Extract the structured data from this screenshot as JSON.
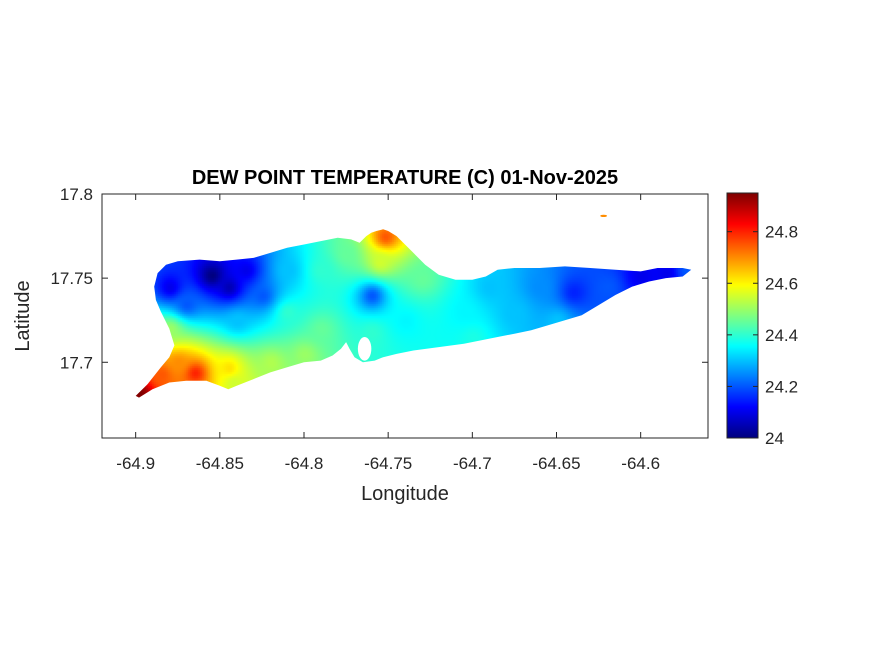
{
  "chart_data": {
    "type": "heatmap",
    "title": "DEW POINT TEMPERATURE (C) 01-Nov-2025",
    "xlabel": "Longitude",
    "ylabel": "Latitude",
    "xlim": [
      -64.92,
      -64.56
    ],
    "ylim": [
      17.655,
      17.8
    ],
    "x_ticks": [
      -64.9,
      -64.85,
      -64.8,
      -64.75,
      -64.7,
      -64.65,
      -64.6
    ],
    "x_tick_labels": [
      "-64.9",
      "-64.85",
      "-64.8",
      "-64.75",
      "-64.7",
      "-64.65",
      "-64.6"
    ],
    "y_ticks": [
      17.7,
      17.75,
      17.8
    ],
    "y_tick_labels": [
      "17.7",
      "17.75",
      "17.8"
    ],
    "colorbar": {
      "colormap": "jet",
      "range": [
        24.0,
        24.95
      ],
      "ticks": [
        24,
        24.2,
        24.4,
        24.6,
        24.8
      ],
      "tick_labels": [
        "24",
        "24.2",
        "24.4",
        "24.6",
        "24.8"
      ]
    },
    "grid": false,
    "land_outline": [
      [
        -64.9,
        17.68
      ],
      [
        -64.893,
        17.687
      ],
      [
        -64.885,
        17.697
      ],
      [
        -64.88,
        17.703
      ],
      [
        -64.877,
        17.71
      ],
      [
        -64.88,
        17.72
      ],
      [
        -64.885,
        17.73
      ],
      [
        -64.888,
        17.737
      ],
      [
        -64.889,
        17.745
      ],
      [
        -64.887,
        17.753
      ],
      [
        -64.882,
        17.758
      ],
      [
        -64.875,
        17.76
      ],
      [
        -64.862,
        17.761
      ],
      [
        -64.85,
        17.76
      ],
      [
        -64.84,
        17.761
      ],
      [
        -64.83,
        17.762
      ],
      [
        -64.82,
        17.765
      ],
      [
        -64.81,
        17.768
      ],
      [
        -64.8,
        17.77
      ],
      [
        -64.79,
        17.772
      ],
      [
        -64.78,
        17.774
      ],
      [
        -64.772,
        17.773
      ],
      [
        -64.767,
        17.771
      ],
      [
        -64.763,
        17.775
      ],
      [
        -64.76,
        17.777
      ],
      [
        -64.757,
        17.778
      ],
      [
        -64.753,
        17.779
      ],
      [
        -64.75,
        17.778
      ],
      [
        -64.745,
        17.775
      ],
      [
        -64.74,
        17.77
      ],
      [
        -64.735,
        17.765
      ],
      [
        -64.728,
        17.758
      ],
      [
        -64.72,
        17.752
      ],
      [
        -64.71,
        17.749
      ],
      [
        -64.7,
        17.749
      ],
      [
        -64.692,
        17.751
      ],
      [
        -64.685,
        17.755
      ],
      [
        -64.675,
        17.756
      ],
      [
        -64.66,
        17.756
      ],
      [
        -64.645,
        17.757
      ],
      [
        -64.63,
        17.756
      ],
      [
        -64.615,
        17.755
      ],
      [
        -64.6,
        17.754
      ],
      [
        -64.59,
        17.756
      ],
      [
        -64.575,
        17.756
      ],
      [
        -64.57,
        17.755
      ],
      [
        -64.575,
        17.751
      ],
      [
        -64.585,
        17.75
      ],
      [
        -64.595,
        17.748
      ],
      [
        -64.605,
        17.745
      ],
      [
        -64.615,
        17.74
      ],
      [
        -64.625,
        17.734
      ],
      [
        -64.635,
        17.728
      ],
      [
        -64.645,
        17.725
      ],
      [
        -64.655,
        17.722
      ],
      [
        -64.665,
        17.719
      ],
      [
        -64.675,
        17.717
      ],
      [
        -64.685,
        17.715
      ],
      [
        -64.695,
        17.713
      ],
      [
        -64.705,
        17.711
      ],
      [
        -64.72,
        17.709
      ],
      [
        -64.735,
        17.707
      ],
      [
        -64.745,
        17.705
      ],
      [
        -64.753,
        17.703
      ],
      [
        -64.758,
        17.701
      ],
      [
        -64.765,
        17.7
      ],
      [
        -64.77,
        17.703
      ],
      [
        -64.773,
        17.708
      ],
      [
        -64.775,
        17.712
      ],
      [
        -64.778,
        17.708
      ],
      [
        -64.783,
        17.704
      ],
      [
        -64.79,
        17.701
      ],
      [
        -64.8,
        17.7
      ],
      [
        -64.81,
        17.697
      ],
      [
        -64.82,
        17.694
      ],
      [
        -64.83,
        17.69
      ],
      [
        -64.84,
        17.686
      ],
      [
        -64.845,
        17.684
      ],
      [
        -64.85,
        17.686
      ],
      [
        -64.858,
        17.689
      ],
      [
        -64.87,
        17.689
      ],
      [
        -64.88,
        17.688
      ],
      [
        -64.89,
        17.684
      ],
      [
        -64.898,
        17.679
      ]
    ],
    "bays": [
      {
        "center": [
          -64.764,
          17.708
        ],
        "radius": [
          0.004,
          0.007
        ]
      },
      {
        "center": [
          -64.776,
          17.778
        ],
        "radius": [
          0.004,
          0.004
        ]
      }
    ],
    "islets": [
      {
        "center": [
          -64.622,
          17.787
        ],
        "radius": [
          0.002,
          0.0007
        ]
      }
    ],
    "stations": [
      {
        "lon": -64.898,
        "lat": 17.682,
        "value": 24.95
      },
      {
        "lon": -64.885,
        "lat": 17.693,
        "value": 24.75
      },
      {
        "lon": -64.865,
        "lat": 17.694,
        "value": 24.8
      },
      {
        "lon": -64.875,
        "lat": 17.7,
        "value": 24.7
      },
      {
        "lon": -64.845,
        "lat": 17.697,
        "value": 24.62
      },
      {
        "lon": -64.842,
        "lat": 17.688,
        "value": 24.55
      },
      {
        "lon": -64.82,
        "lat": 17.7,
        "value": 24.52
      },
      {
        "lon": -64.8,
        "lat": 17.705,
        "value": 24.5
      },
      {
        "lon": -64.88,
        "lat": 17.72,
        "value": 24.5
      },
      {
        "lon": -64.88,
        "lat": 17.745,
        "value": 24.1
      },
      {
        "lon": -64.87,
        "lat": 17.735,
        "value": 24.2
      },
      {
        "lon": -64.855,
        "lat": 17.752,
        "value": 24.0
      },
      {
        "lon": -64.845,
        "lat": 17.745,
        "value": 24.05
      },
      {
        "lon": -64.835,
        "lat": 17.755,
        "value": 24.1
      },
      {
        "lon": -64.825,
        "lat": 17.74,
        "value": 24.2
      },
      {
        "lon": -64.84,
        "lat": 17.725,
        "value": 24.3
      },
      {
        "lon": -64.81,
        "lat": 17.755,
        "value": 24.3
      },
      {
        "lon": -64.81,
        "lat": 17.73,
        "value": 24.4
      },
      {
        "lon": -64.79,
        "lat": 17.755,
        "value": 24.4
      },
      {
        "lon": -64.79,
        "lat": 17.72,
        "value": 24.45
      },
      {
        "lon": -64.775,
        "lat": 17.765,
        "value": 24.45
      },
      {
        "lon": -64.76,
        "lat": 17.74,
        "value": 24.2
      },
      {
        "lon": -64.755,
        "lat": 17.76,
        "value": 24.55
      },
      {
        "lon": -64.752,
        "lat": 17.775,
        "value": 24.75
      },
      {
        "lon": -64.76,
        "lat": 17.718,
        "value": 24.4
      },
      {
        "lon": -64.74,
        "lat": 17.725,
        "value": 24.35
      },
      {
        "lon": -64.73,
        "lat": 17.75,
        "value": 24.45
      },
      {
        "lon": -64.705,
        "lat": 17.73,
        "value": 24.35
      },
      {
        "lon": -64.7,
        "lat": 17.715,
        "value": 24.38
      },
      {
        "lon": -64.69,
        "lat": 17.745,
        "value": 24.3
      },
      {
        "lon": -64.675,
        "lat": 17.73,
        "value": 24.3
      },
      {
        "lon": -64.66,
        "lat": 17.745,
        "value": 24.25
      },
      {
        "lon": -64.65,
        "lat": 17.725,
        "value": 24.3
      },
      {
        "lon": -64.64,
        "lat": 17.742,
        "value": 24.15
      },
      {
        "lon": -64.62,
        "lat": 17.745,
        "value": 24.2
      },
      {
        "lon": -64.6,
        "lat": 17.752,
        "value": 24.1
      },
      {
        "lon": -64.585,
        "lat": 17.753,
        "value": 24.1
      },
      {
        "lon": -64.573,
        "lat": 17.755,
        "value": 24.2
      }
    ]
  }
}
